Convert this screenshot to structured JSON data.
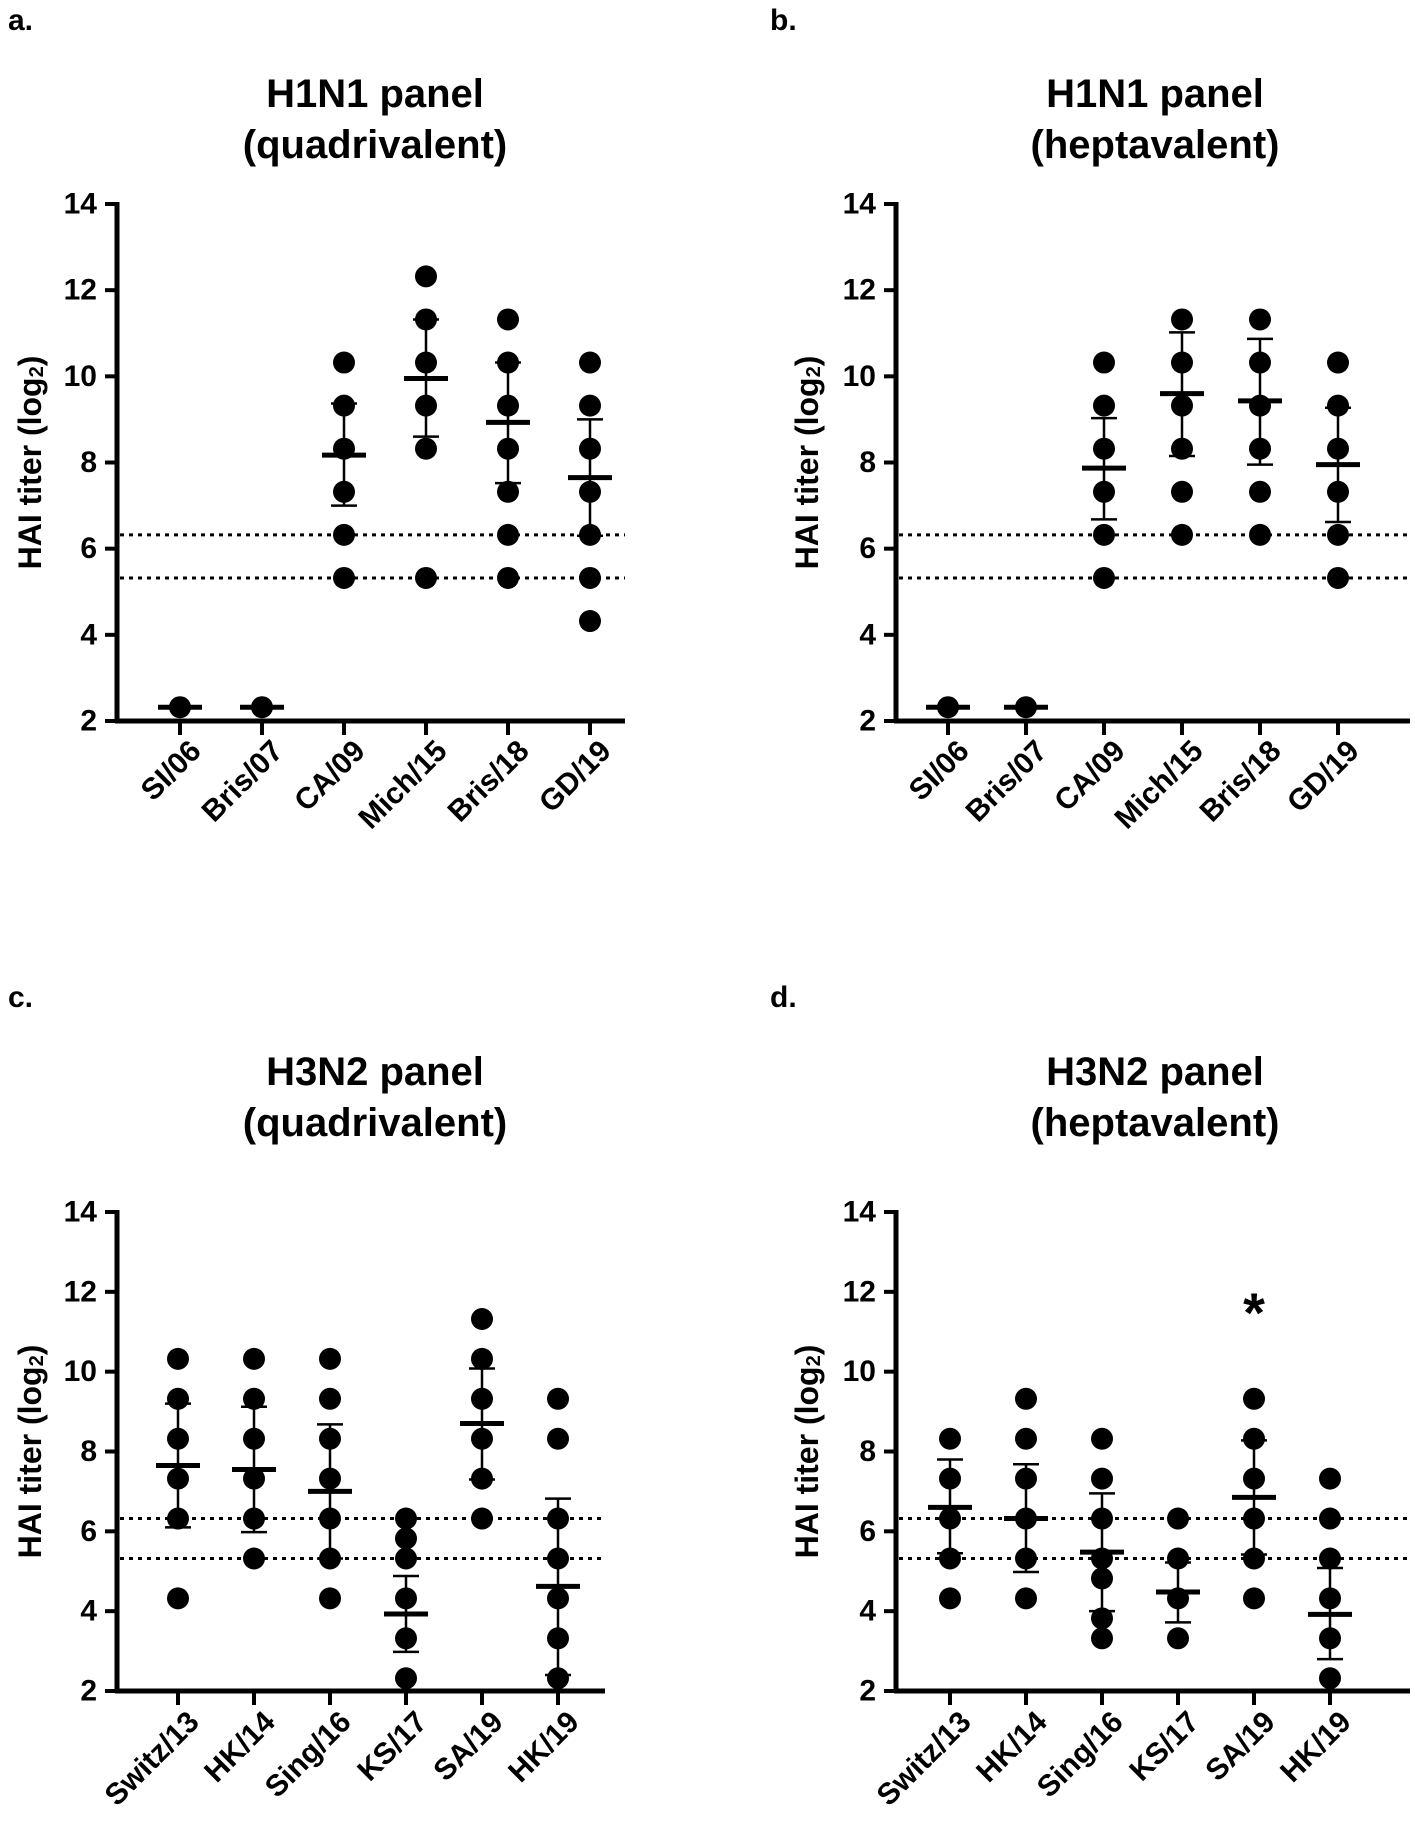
{
  "figure": {
    "background": "#ffffff",
    "ink": "#000000"
  },
  "chart_data": [
    {
      "type": "scatter",
      "panel_label": "a.",
      "title_line1": "H1N1 panel",
      "title_line2": "(quadrivalent)",
      "ylabel": "HAI titer (log",
      "ylabel_sub": "2",
      "ylabel_close": ")",
      "ylim": [
        2,
        14
      ],
      "yticks": [
        "2",
        "4",
        "6",
        "8",
        "10",
        "12",
        "14"
      ],
      "threshold_lines": [
        5.32,
        6.32
      ],
      "categories": [
        "SI/06",
        "Bris/07",
        "CA/09",
        "Mich/15",
        "Bris/18",
        "GD/19"
      ],
      "points": [
        [
          2.32
        ],
        [
          2.32
        ],
        [
          5.32,
          6.32,
          7.32,
          8.32,
          9.32,
          10.32
        ],
        [
          5.32,
          8.32,
          9.32,
          10.32,
          11.32,
          12.32
        ],
        [
          5.32,
          6.32,
          7.32,
          8.32,
          9.32,
          10.32,
          11.32
        ],
        [
          4.32,
          5.32,
          6.32,
          7.32,
          8.32,
          9.32,
          10.32
        ]
      ],
      "means": [
        2.32,
        2.32,
        8.17,
        9.95,
        8.93,
        7.65
      ],
      "sd_low": [
        null,
        null,
        7.0,
        8.6,
        7.52,
        6.3
      ],
      "sd_high": [
        null,
        null,
        9.37,
        11.32,
        10.32,
        9.0
      ],
      "annotations": []
    },
    {
      "type": "scatter",
      "panel_label": "b.",
      "title_line1": "H1N1 panel",
      "title_line2": "(heptavalent)",
      "ylabel": "HAI titer (log",
      "ylabel_sub": "2",
      "ylabel_close": ")",
      "ylim": [
        2,
        14
      ],
      "yticks": [
        "2",
        "4",
        "6",
        "8",
        "10",
        "12",
        "14"
      ],
      "threshold_lines": [
        5.32,
        6.32
      ],
      "categories": [
        "SI/06",
        "Bris/07",
        "CA/09",
        "Mich/15",
        "Bris/18",
        "GD/19"
      ],
      "points": [
        [
          2.32
        ],
        [
          2.32
        ],
        [
          5.32,
          6.32,
          7.32,
          8.32,
          9.32,
          10.32
        ],
        [
          6.32,
          7.32,
          8.32,
          9.32,
          10.32,
          11.32
        ],
        [
          6.32,
          7.32,
          8.32,
          9.32,
          10.32,
          11.32
        ],
        [
          5.32,
          6.32,
          7.32,
          8.32,
          9.32,
          10.32
        ]
      ],
      "means": [
        2.32,
        2.32,
        7.87,
        9.6,
        9.43,
        7.95
      ],
      "sd_low": [
        null,
        null,
        6.68,
        8.15,
        7.95,
        6.62
      ],
      "sd_high": [
        null,
        null,
        9.03,
        11.02,
        10.87,
        9.27
      ],
      "annotations": []
    },
    {
      "type": "scatter",
      "panel_label": "c.",
      "title_line1": "H3N2 panel",
      "title_line2": "(quadrivalent)",
      "ylabel": "HAI titer (log",
      "ylabel_sub": "2",
      "ylabel_close": ")",
      "ylim": [
        2,
        14
      ],
      "yticks": [
        "2",
        "4",
        "6",
        "8",
        "10",
        "12",
        "14"
      ],
      "threshold_lines": [
        5.32,
        6.32
      ],
      "categories": [
        "Switz/13",
        "HK/14",
        "Sing/16",
        "KS/17",
        "SA/19",
        "HK/19"
      ],
      "points": [
        [
          4.32,
          6.32,
          7.32,
          8.32,
          9.32,
          10.32
        ],
        [
          5.32,
          6.32,
          7.32,
          8.32,
          9.32,
          10.32
        ],
        [
          4.32,
          5.32,
          6.32,
          7.32,
          8.32,
          9.32,
          10.32
        ],
        [
          2.32,
          3.32,
          4.32,
          5.32,
          5.82,
          6.32
        ],
        [
          6.32,
          7.32,
          8.32,
          9.32,
          10.32,
          11.32
        ],
        [
          2.32,
          3.32,
          4.32,
          5.32,
          6.32,
          8.32,
          9.32
        ]
      ],
      "means": [
        7.65,
        7.55,
        7.0,
        3.93,
        8.7,
        4.62
      ],
      "sd_low": [
        6.1,
        5.98,
        5.32,
        2.98,
        7.3,
        2.4
      ],
      "sd_high": [
        9.2,
        9.12,
        8.68,
        4.88,
        10.08,
        6.82
      ],
      "annotations": []
    },
    {
      "type": "scatter",
      "panel_label": "d.",
      "title_line1": "H3N2 panel",
      "title_line2": "(heptavalent)",
      "ylabel": "HAI titer (log",
      "ylabel_sub": "2",
      "ylabel_close": ")",
      "ylim": [
        2,
        14
      ],
      "yticks": [
        "2",
        "4",
        "6",
        "8",
        "10",
        "12",
        "14"
      ],
      "threshold_lines": [
        5.32,
        6.32
      ],
      "categories": [
        "Switz/13",
        "HK/14",
        "Sing/16",
        "KS/17",
        "SA/19",
        "HK/19"
      ],
      "points": [
        [
          4.32,
          5.32,
          6.32,
          7.32,
          8.32
        ],
        [
          4.32,
          5.32,
          6.32,
          7.32,
          8.32,
          9.32
        ],
        [
          3.32,
          3.82,
          4.82,
          5.32,
          6.32,
          7.32,
          8.32
        ],
        [
          3.32,
          4.32,
          5.32,
          6.32
        ],
        [
          4.32,
          5.32,
          6.32,
          7.32,
          8.32,
          9.32
        ],
        [
          2.32,
          3.32,
          4.32,
          5.32,
          6.32,
          7.32
        ]
      ],
      "means": [
        6.6,
        6.32,
        5.48,
        4.48,
        6.85,
        3.92
      ],
      "sd_low": [
        5.45,
        4.98,
        4.0,
        3.72,
        5.42,
        2.8
      ],
      "sd_high": [
        7.8,
        7.68,
        6.95,
        5.22,
        8.28,
        5.08
      ],
      "annotations": [
        {
          "text": "*",
          "category": "SA/19",
          "y": 11.5
        }
      ]
    }
  ]
}
